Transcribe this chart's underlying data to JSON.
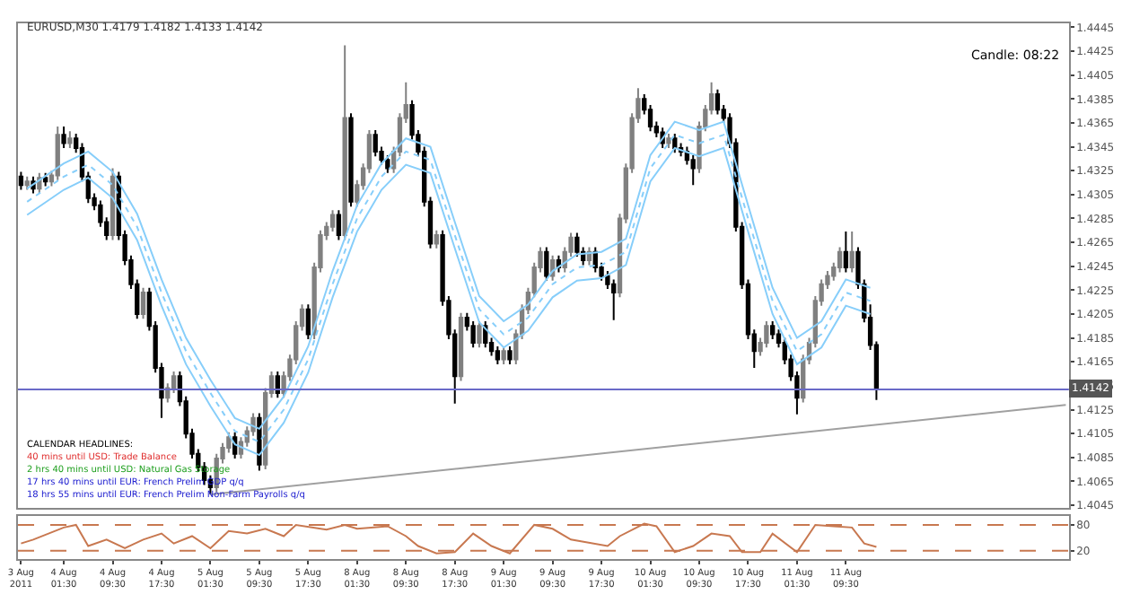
{
  "chart_data": [
    {
      "type": "candlestick",
      "title": "EURUSD,M30 1.4179 1.4182 1.4133 1.4142",
      "ohlc": [
        [
          1.432,
          1.4324,
          1.4309,
          1.4313
        ],
        [
          1.4313,
          1.432,
          1.4309,
          1.4316
        ],
        [
          1.4316,
          1.432,
          1.4306,
          1.431
        ],
        [
          1.431,
          1.4323,
          1.4306,
          1.4319
        ],
        [
          1.4319,
          1.4323,
          1.4312,
          1.4316
        ],
        [
          1.4316,
          1.4325,
          1.4312,
          1.4321
        ],
        [
          1.4321,
          1.4362,
          1.4317,
          1.4355
        ],
        [
          1.4355,
          1.4362,
          1.4344,
          1.4348
        ],
        [
          1.4348,
          1.4358,
          1.4344,
          1.4352
        ],
        [
          1.4352,
          1.4356,
          1.434,
          1.4344
        ],
        [
          1.4344,
          1.4348,
          1.4316,
          1.432
        ],
        [
          1.432,
          1.4324,
          1.4298,
          1.4302
        ],
        [
          1.4302,
          1.4306,
          1.4292,
          1.4296
        ],
        [
          1.4296,
          1.43,
          1.4278,
          1.4282
        ],
        [
          1.4282,
          1.4286,
          1.4267,
          1.4271
        ],
        [
          1.4271,
          1.4327,
          1.4267,
          1.432
        ],
        [
          1.432,
          1.4324,
          1.4267,
          1.4271
        ],
        [
          1.4271,
          1.4275,
          1.4246,
          1.425
        ],
        [
          1.425,
          1.4254,
          1.4226,
          1.423
        ],
        [
          1.423,
          1.4234,
          1.4201,
          1.4205
        ],
        [
          1.4205,
          1.4227,
          1.4201,
          1.4223
        ],
        [
          1.4223,
          1.4227,
          1.4191,
          1.4195
        ],
        [
          1.4195,
          1.4199,
          1.4156,
          1.416
        ],
        [
          1.416,
          1.4164,
          1.4118,
          1.4135
        ],
        [
          1.4135,
          1.4147,
          1.4131,
          1.4143
        ],
        [
          1.4143,
          1.4157,
          1.4139,
          1.4153
        ],
        [
          1.4153,
          1.4157,
          1.4128,
          1.4132
        ],
        [
          1.4132,
          1.4136,
          1.4101,
          1.4105
        ],
        [
          1.4105,
          1.4109,
          1.4084,
          1.4088
        ],
        [
          1.4088,
          1.4092,
          1.4073,
          1.4077
        ],
        [
          1.4077,
          1.4081,
          1.4062,
          1.4066
        ],
        [
          1.4066,
          1.407,
          1.4054,
          1.406
        ],
        [
          1.406,
          1.4088,
          1.4056,
          1.4084
        ],
        [
          1.4084,
          1.4097,
          1.408,
          1.4093
        ],
        [
          1.4093,
          1.4106,
          1.4089,
          1.4102
        ],
        [
          1.4102,
          1.4106,
          1.4084,
          1.4088
        ],
        [
          1.4088,
          1.4102,
          1.4084,
          1.4098
        ],
        [
          1.4098,
          1.4111,
          1.4094,
          1.4107
        ],
        [
          1.4107,
          1.4122,
          1.4103,
          1.4118
        ],
        [
          1.4118,
          1.4122,
          1.4074,
          1.4079
        ],
        [
          1.4079,
          1.4143,
          1.4075,
          1.4139
        ],
        [
          1.4139,
          1.4157,
          1.4135,
          1.4153
        ],
        [
          1.4153,
          1.4157,
          1.4135,
          1.4139
        ],
        [
          1.4139,
          1.4157,
          1.4135,
          1.4153
        ],
        [
          1.4153,
          1.4171,
          1.4149,
          1.4167
        ],
        [
          1.4167,
          1.4199,
          1.4163,
          1.4195
        ],
        [
          1.4195,
          1.4213,
          1.4191,
          1.4209
        ],
        [
          1.4209,
          1.4213,
          1.4184,
          1.4188
        ],
        [
          1.4188,
          1.4248,
          1.4184,
          1.4244
        ],
        [
          1.4244,
          1.4275,
          1.424,
          1.4271
        ],
        [
          1.4271,
          1.4282,
          1.4267,
          1.4278
        ],
        [
          1.4278,
          1.4292,
          1.4274,
          1.4288
        ],
        [
          1.4288,
          1.4292,
          1.4267,
          1.4271
        ],
        [
          1.4271,
          1.443,
          1.4267,
          1.4369
        ],
        [
          1.4369,
          1.4373,
          1.4295,
          1.4299
        ],
        [
          1.4299,
          1.4317,
          1.4295,
          1.4313
        ],
        [
          1.4313,
          1.4331,
          1.4309,
          1.4327
        ],
        [
          1.4327,
          1.4359,
          1.4323,
          1.4355
        ],
        [
          1.4355,
          1.4359,
          1.4337,
          1.4341
        ],
        [
          1.4341,
          1.4345,
          1.433,
          1.4334
        ],
        [
          1.4334,
          1.4338,
          1.4323,
          1.4327
        ],
        [
          1.4327,
          1.4345,
          1.4323,
          1.4341
        ],
        [
          1.4341,
          1.4373,
          1.4337,
          1.4369
        ],
        [
          1.4369,
          1.4399,
          1.4365,
          1.438
        ],
        [
          1.438,
          1.4384,
          1.4351,
          1.4355
        ],
        [
          1.4355,
          1.4359,
          1.4337,
          1.4341
        ],
        [
          1.4341,
          1.4345,
          1.4295,
          1.4299
        ],
        [
          1.4299,
          1.4303,
          1.426,
          1.4264
        ],
        [
          1.4264,
          1.4275,
          1.426,
          1.4271
        ],
        [
          1.4271,
          1.4275,
          1.4212,
          1.4216
        ],
        [
          1.4216,
          1.422,
          1.4184,
          1.4188
        ],
        [
          1.4188,
          1.4192,
          1.413,
          1.4153
        ],
        [
          1.4153,
          1.4206,
          1.4149,
          1.4202
        ],
        [
          1.4202,
          1.4206,
          1.4191,
          1.4195
        ],
        [
          1.4195,
          1.4199,
          1.4177,
          1.4181
        ],
        [
          1.4181,
          1.4199,
          1.4177,
          1.4195
        ],
        [
          1.4195,
          1.4199,
          1.4177,
          1.4181
        ],
        [
          1.4181,
          1.4185,
          1.417,
          1.4174
        ],
        [
          1.4174,
          1.4178,
          1.4163,
          1.4167
        ],
        [
          1.4167,
          1.4178,
          1.4163,
          1.4174
        ],
        [
          1.4174,
          1.4178,
          1.4163,
          1.4167
        ],
        [
          1.4167,
          1.4192,
          1.4163,
          1.4188
        ],
        [
          1.4188,
          1.4213,
          1.4184,
          1.4209
        ],
        [
          1.4209,
          1.4227,
          1.4205,
          1.4223
        ],
        [
          1.4223,
          1.4248,
          1.4219,
          1.4244
        ],
        [
          1.4244,
          1.4261,
          1.424,
          1.4257
        ],
        [
          1.4257,
          1.4261,
          1.4233,
          1.4237
        ],
        [
          1.4237,
          1.4254,
          1.4233,
          1.425
        ],
        [
          1.425,
          1.4254,
          1.424,
          1.4244
        ],
        [
          1.4244,
          1.4261,
          1.424,
          1.4257
        ],
        [
          1.4257,
          1.4273,
          1.4253,
          1.4269
        ],
        [
          1.4269,
          1.4273,
          1.4253,
          1.4257
        ],
        [
          1.4257,
          1.4261,
          1.4246,
          1.425
        ],
        [
          1.425,
          1.4261,
          1.4246,
          1.4257
        ],
        [
          1.4257,
          1.4261,
          1.424,
          1.4244
        ],
        [
          1.4244,
          1.4248,
          1.4233,
          1.4237
        ],
        [
          1.4237,
          1.4241,
          1.4226,
          1.423
        ],
        [
          1.423,
          1.4234,
          1.42,
          1.4223
        ],
        [
          1.4223,
          1.4289,
          1.4219,
          1.4285
        ],
        [
          1.4285,
          1.4331,
          1.4281,
          1.4327
        ],
        [
          1.4327,
          1.4373,
          1.4323,
          1.4369
        ],
        [
          1.4369,
          1.4394,
          1.4365,
          1.4385
        ],
        [
          1.4385,
          1.4389,
          1.4372,
          1.4376
        ],
        [
          1.4376,
          1.438,
          1.4358,
          1.4362
        ],
        [
          1.4362,
          1.4366,
          1.4353,
          1.4357
        ],
        [
          1.4357,
          1.4361,
          1.4344,
          1.4348
        ],
        [
          1.4348,
          1.4356,
          1.4344,
          1.4352
        ],
        [
          1.4352,
          1.4356,
          1.434,
          1.4344
        ],
        [
          1.4344,
          1.4348,
          1.4337,
          1.4341
        ],
        [
          1.4341,
          1.4345,
          1.433,
          1.4334
        ],
        [
          1.4334,
          1.4338,
          1.4313,
          1.4327
        ],
        [
          1.4327,
          1.4366,
          1.4323,
          1.4362
        ],
        [
          1.4362,
          1.438,
          1.4358,
          1.4376
        ],
        [
          1.4376,
          1.4399,
          1.4372,
          1.4389
        ],
        [
          1.4389,
          1.4393,
          1.4372,
          1.4376
        ],
        [
          1.4376,
          1.438,
          1.4365,
          1.4369
        ],
        [
          1.4369,
          1.4373,
          1.4344,
          1.4348
        ],
        [
          1.4348,
          1.4352,
          1.4274,
          1.4278
        ],
        [
          1.4278,
          1.4282,
          1.4226,
          1.423
        ],
        [
          1.423,
          1.4234,
          1.4184,
          1.4188
        ],
        [
          1.4188,
          1.4192,
          1.416,
          1.4174
        ],
        [
          1.4174,
          1.4185,
          1.417,
          1.4181
        ],
        [
          1.4181,
          1.4199,
          1.4177,
          1.4195
        ],
        [
          1.4195,
          1.4199,
          1.4184,
          1.4188
        ],
        [
          1.4188,
          1.4192,
          1.4177,
          1.4181
        ],
        [
          1.4181,
          1.4185,
          1.4163,
          1.4167
        ],
        [
          1.4167,
          1.4171,
          1.4149,
          1.4153
        ],
        [
          1.4153,
          1.4157,
          1.4121,
          1.4135
        ],
        [
          1.4135,
          1.4171,
          1.4131,
          1.4167
        ],
        [
          1.4167,
          1.4185,
          1.4163,
          1.4181
        ],
        [
          1.4181,
          1.422,
          1.4177,
          1.4216
        ],
        [
          1.4216,
          1.4234,
          1.4212,
          1.423
        ],
        [
          1.423,
          1.4241,
          1.4226,
          1.4237
        ],
        [
          1.4237,
          1.4248,
          1.4233,
          1.4244
        ],
        [
          1.4244,
          1.4261,
          1.424,
          1.4257
        ],
        [
          1.4257,
          1.4274,
          1.424,
          1.4244
        ],
        [
          1.4244,
          1.4274,
          1.424,
          1.4257
        ],
        [
          1.4257,
          1.4261,
          1.4226,
          1.423
        ],
        [
          1.423,
          1.4234,
          1.4198,
          1.4202
        ],
        [
          1.4202,
          1.4213,
          1.4175,
          1.4179
        ],
        [
          1.4179,
          1.4182,
          1.4133,
          1.4142
        ],
        null,
        null,
        null,
        null,
        null,
        null,
        null,
        null,
        null,
        null,
        null,
        null,
        null,
        null,
        null,
        null,
        null,
        null,
        null,
        null,
        null,
        null,
        null,
        null,
        null,
        null,
        null,
        null,
        null,
        null,
        null
      ],
      "colors": [
        "#000000",
        "#808080",
        "#000000",
        "#808080",
        "#000000",
        "#808080",
        "#808080",
        "#000000",
        "#808080",
        "#000000",
        "#000000",
        "#000000",
        "#000000",
        "#000000",
        "#000000",
        "#808080",
        "#000000",
        "#000000",
        "#000000",
        "#000000",
        "#808080",
        "#000000",
        "#000000",
        "#000000",
        "#808080",
        "#808080",
        "#000000",
        "#000000",
        "#000000",
        "#000000",
        "#000000",
        "#000000",
        "#808080",
        "#808080",
        "#808080",
        "#000000",
        "#808080",
        "#808080",
        "#808080",
        "#000000",
        "#808080",
        "#808080",
        "#000000",
        "#808080",
        "#808080",
        "#808080",
        "#808080",
        "#000000",
        "#808080",
        "#808080",
        "#808080",
        "#808080",
        "#000000",
        "#808080",
        "#000000",
        "#808080",
        "#808080",
        "#808080",
        "#000000",
        "#000000",
        "#000000",
        "#808080",
        "#808080",
        "#808080",
        "#000000",
        "#000000",
        "#000000",
        "#000000",
        "#808080",
        "#000000",
        "#000000",
        "#000000",
        "#808080",
        "#000000",
        "#000000",
        "#808080",
        "#000000",
        "#000000",
        "#000000",
        "#808080",
        "#000000",
        "#808080",
        "#808080",
        "#808080",
        "#808080",
        "#808080",
        "#000000",
        "#808080",
        "#000000",
        "#808080",
        "#808080",
        "#000000",
        "#000000",
        "#808080",
        "#000000",
        "#000000",
        "#000000",
        "#000000",
        "#808080",
        "#808080",
        "#808080",
        "#808080",
        "#000000",
        "#000000",
        "#000000",
        "#000000",
        "#808080",
        "#000000",
        "#000000",
        "#000000",
        "#000000",
        "#808080",
        "#808080",
        "#808080",
        "#000000",
        "#000000",
        "#000000",
        "#000000",
        "#000000",
        "#000000",
        "#000000",
        "#808080",
        "#808080",
        "#000000",
        "#000000",
        "#000000",
        "#000000",
        "#000000",
        "#808080",
        "#808080",
        "#808080",
        "#808080",
        "#808080",
        "#808080",
        "#808080",
        "#000000",
        "#808080",
        "#000000",
        "#000000",
        "#000000",
        "#000000",
        null,
        null,
        null,
        null,
        null,
        null,
        null,
        null,
        null,
        null,
        null,
        null,
        null,
        null,
        null,
        null,
        null,
        null,
        null,
        null,
        null,
        null,
        null,
        null,
        null,
        null,
        null,
        null,
        null,
        null,
        null
      ],
      "series": [
        {
          "type": "line",
          "color": "#87cefa",
          "line_style": "solid",
          "values": [
            null,
            1.431,
            null,
            null,
            null,
            null,
            null,
            1.4331,
            null,
            null,
            null,
            1.4341,
            null,
            null,
            null,
            1.4324,
            null,
            null,
            null,
            1.4289,
            null,
            null,
            null,
            1.4234,
            null,
            null,
            null,
            1.4185,
            null,
            null,
            null,
            1.415,
            null,
            null,
            null,
            1.4118,
            null,
            null,
            null,
            1.4109,
            null,
            null,
            null,
            1.4136,
            null,
            null,
            null,
            1.4178,
            null,
            null,
            null,
            1.4241,
            null,
            null,
            null,
            1.4296,
            null,
            null,
            null,
            1.4331,
            null,
            null,
            null,
            1.4352,
            null,
            null,
            null,
            1.4345,
            null,
            null,
            null,
            1.4282,
            null,
            null,
            null,
            1.422,
            null,
            null,
            null,
            1.4199,
            null,
            null,
            null,
            1.4213,
            null,
            null,
            null,
            1.4241,
            null,
            null,
            null,
            1.4255,
            null,
            null,
            null,
            1.4257,
            null,
            null,
            null,
            1.4268,
            null,
            null,
            null,
            1.4338,
            null,
            null,
            null,
            1.4366,
            null,
            null,
            null,
            1.4359,
            null,
            null,
            null,
            1.4366,
            null,
            null,
            null,
            1.4296,
            null,
            null,
            null,
            1.4227,
            null,
            null,
            null,
            1.4185,
            null,
            null,
            null,
            1.4199,
            null,
            null,
            null,
            1.4234,
            null,
            null,
            null,
            1.4227,
            null,
            null,
            null,
            null,
            null,
            null,
            null,
            null,
            null,
            null,
            null,
            null,
            null,
            null,
            null,
            null,
            null,
            null,
            null,
            null,
            null,
            null,
            null,
            null,
            null,
            null,
            null,
            null,
            null,
            null,
            null,
            null
          ]
        },
        {
          "type": "line",
          "color": "#87cefa",
          "line_style": "dotted",
          "values": [
            null,
            1.4299,
            null,
            null,
            null,
            null,
            null,
            1.432,
            null,
            null,
            null,
            1.433,
            null,
            null,
            null,
            1.4313,
            null,
            null,
            null,
            1.4278,
            null,
            null,
            null,
            1.4223,
            null,
            null,
            null,
            1.4174,
            null,
            null,
            null,
            1.4139,
            null,
            null,
            null,
            1.4107,
            null,
            null,
            null,
            1.4098,
            null,
            null,
            null,
            1.4125,
            null,
            null,
            null,
            1.4167,
            null,
            null,
            null,
            1.423,
            null,
            null,
            null,
            1.4285,
            null,
            null,
            null,
            1.432,
            null,
            null,
            null,
            1.4341,
            null,
            null,
            null,
            1.4334,
            null,
            null,
            null,
            1.4271,
            null,
            null,
            null,
            1.4209,
            null,
            null,
            null,
            1.4188,
            null,
            null,
            null,
            1.4202,
            null,
            null,
            null,
            1.423,
            null,
            null,
            null,
            1.4244,
            null,
            null,
            null,
            1.4246,
            null,
            null,
            null,
            1.4257,
            null,
            null,
            null,
            1.4327,
            null,
            null,
            null,
            1.4355,
            null,
            null,
            null,
            1.4348,
            null,
            null,
            null,
            1.4355,
            null,
            null,
            null,
            1.4285,
            null,
            null,
            null,
            1.4216,
            null,
            null,
            null,
            1.4174,
            null,
            null,
            null,
            1.4188,
            null,
            null,
            null,
            1.4223,
            null,
            null,
            null,
            1.4216,
            null,
            null,
            null,
            null,
            null,
            null,
            null,
            null,
            null,
            null,
            null,
            null,
            null,
            null,
            null,
            null,
            null,
            null,
            null,
            null,
            null,
            null,
            null,
            null,
            null,
            null,
            null,
            null,
            null,
            null,
            null,
            null
          ]
        },
        {
          "type": "line",
          "color": "#87cefa",
          "line_style": "solid",
          "values": [
            null,
            1.4288,
            null,
            null,
            null,
            null,
            null,
            1.4309,
            null,
            null,
            null,
            1.4319,
            null,
            null,
            null,
            1.4302,
            null,
            null,
            null,
            1.4267,
            null,
            null,
            null,
            1.4212,
            null,
            null,
            null,
            1.4163,
            null,
            null,
            null,
            1.4128,
            null,
            null,
            null,
            1.4096,
            null,
            null,
            null,
            1.4087,
            null,
            null,
            null,
            1.4114,
            null,
            null,
            null,
            1.4156,
            null,
            null,
            null,
            1.4219,
            null,
            null,
            null,
            1.4274,
            null,
            null,
            null,
            1.4309,
            null,
            null,
            null,
            1.433,
            null,
            null,
            null,
            1.4323,
            null,
            null,
            null,
            1.426,
            null,
            null,
            null,
            1.4198,
            null,
            null,
            null,
            1.4177,
            null,
            null,
            null,
            1.4191,
            null,
            null,
            null,
            1.4219,
            null,
            null,
            null,
            1.4233,
            null,
            null,
            null,
            1.4235,
            null,
            null,
            null,
            1.4246,
            null,
            null,
            null,
            1.4316,
            null,
            null,
            null,
            1.4344,
            null,
            null,
            null,
            1.4337,
            null,
            null,
            null,
            1.4344,
            null,
            null,
            null,
            1.4274,
            null,
            null,
            null,
            1.4205,
            null,
            null,
            null,
            1.4163,
            null,
            null,
            null,
            1.4177,
            null,
            null,
            null,
            1.4212,
            null,
            null,
            null,
            1.4205,
            null,
            null,
            null,
            null,
            null,
            null,
            null,
            null,
            null,
            null,
            null,
            null,
            null,
            null,
            null,
            null,
            null,
            null,
            null,
            null,
            null,
            null,
            null,
            null,
            null,
            null,
            null,
            null,
            null,
            null,
            null,
            null
          ]
        },
        {
          "type": "line",
          "color": "#a0a0a0",
          "line_style": "solid",
          "values": [
            null,
            null,
            null,
            null,
            null,
            null,
            null,
            null,
            null,
            null,
            null,
            null,
            null,
            null,
            null,
            null,
            null,
            null,
            null,
            null,
            null,
            null,
            null,
            null,
            null,
            null,
            null,
            null,
            null,
            null,
            null,
            1.4054,
            null,
            null,
            null,
            null,
            null,
            null,
            null,
            null,
            null,
            null,
            null,
            null,
            null,
            null,
            null,
            null,
            null,
            null,
            null,
            null,
            null,
            null,
            null,
            null,
            null,
            null,
            null,
            null,
            null,
            null,
            null,
            null,
            null,
            null,
            null,
            null,
            null,
            null,
            null,
            null,
            null,
            null,
            null,
            null,
            null,
            null,
            null,
            null,
            null,
            null,
            null,
            null,
            null,
            null,
            null,
            null,
            null,
            null,
            null,
            null,
            null,
            null,
            null,
            null,
            null,
            null,
            null,
            null,
            null,
            null,
            null,
            null,
            null,
            null,
            null,
            null,
            null,
            null,
            null,
            null,
            null,
            null,
            null,
            null,
            null,
            null,
            null,
            null,
            null,
            null,
            null,
            null,
            null,
            null,
            null,
            null,
            null,
            null,
            null,
            null,
            null,
            null,
            null,
            null,
            null,
            null,
            null,
            null,
            null,
            null,
            null,
            null,
            null,
            null,
            null,
            null,
            null,
            null,
            null,
            null,
            null,
            null,
            null,
            null,
            null,
            null,
            null,
            null,
            null,
            null,
            null,
            null,
            null,
            null,
            null,
            null,
            null,
            null,
            null,
            1.4129
          ]
        }
      ],
      "ref_lines": [
        {
          "axis": "y",
          "value": 1.4142,
          "label": "1.4142",
          "color": "#6a6ac8",
          "line_style": "solid"
        }
      ],
      "annotations": [
        "Candle: 08:22",
        "CALENDAR HEADLINES:",
        "40 mins until USD: Trade Balance",
        "2 hrs 40 mins until USD: Natural Gas Storage",
        "17 hrs 40 mins until EUR: French Prelim GDP q/q",
        "18 hrs 55 mins until EUR: French Prelim Non-Farm Payrolls q/q"
      ],
      "ylim": [
        1.4043,
        1.4448
      ],
      "yticks": [
        1.4445,
        1.4425,
        1.4405,
        1.4385,
        1.4365,
        1.4345,
        1.4325,
        1.4305,
        1.4285,
        1.4265,
        1.4245,
        1.4225,
        1.4205,
        1.4185,
        1.4165,
        1.4145,
        1.4125,
        1.4105,
        1.4085,
        1.4065,
        1.4045
      ],
      "tick_labels": "y"
    },
    {
      "type": "line",
      "color": "#c87850",
      "categories": [
        "3 Aug 2011",
        null,
        null,
        null,
        null,
        null,
        null,
        "4 Aug 01:30",
        null,
        null,
        null,
        null,
        null,
        null,
        null,
        "4 Aug 09:30",
        null,
        null,
        null,
        null,
        null,
        null,
        null,
        "4 Aug 17:30",
        null,
        null,
        null,
        null,
        null,
        null,
        null,
        "5 Aug 01:30",
        null,
        null,
        null,
        null,
        null,
        null,
        null,
        "5 Aug 09:30",
        null,
        null,
        null,
        null,
        null,
        null,
        null,
        "5 Aug 17:30",
        null,
        null,
        null,
        null,
        null,
        null,
        null,
        "8 Aug 01:30",
        null,
        null,
        null,
        null,
        null,
        null,
        null,
        "8 Aug 09:30",
        null,
        null,
        null,
        null,
        null,
        null,
        null,
        "8 Aug 17:30",
        null,
        null,
        null,
        null,
        null,
        null,
        null,
        "9 Aug 01:30",
        null,
        null,
        null,
        null,
        null,
        null,
        null,
        "9 Aug 09:30",
        null,
        null,
        null,
        null,
        null,
        null,
        null,
        "9 Aug 17:30",
        null,
        null,
        null,
        null,
        null,
        null,
        null,
        "10 Aug 01:30",
        null,
        null,
        null,
        null,
        null,
        null,
        null,
        "10 Aug 09:30",
        null,
        null,
        null,
        null,
        null,
        null,
        null,
        "10 Aug 17:30",
        null,
        null,
        null,
        null,
        null,
        null,
        null,
        "11 Aug 01:30",
        null,
        null,
        null,
        null,
        null,
        null,
        null,
        "11 Aug 09:30",
        null,
        null,
        null,
        null,
        null,
        null,
        null,
        null,
        null,
        null,
        null,
        null,
        null,
        null,
        null,
        null,
        null,
        null,
        null,
        null,
        null,
        null,
        null,
        null,
        null,
        null,
        null,
        null,
        null,
        null,
        null,
        null,
        null,
        null,
        null,
        null
      ],
      "values": [
        37,
        null,
        46,
        null,
        null,
        null,
        null,
        74,
        null,
        80,
        null,
        31,
        null,
        null,
        46,
        null,
        null,
        26,
        null,
        null,
        46,
        null,
        null,
        60,
        null,
        37,
        null,
        null,
        54,
        null,
        null,
        26,
        null,
        null,
        66,
        null,
        null,
        60,
        null,
        null,
        71,
        null,
        null,
        54,
        null,
        80,
        null,
        null,
        null,
        null,
        69,
        null,
        null,
        80,
        null,
        71,
        null,
        null,
        null,
        null,
        77,
        null,
        null,
        54,
        null,
        31,
        null,
        null,
        14,
        null,
        null,
        17,
        null,
        null,
        60,
        null,
        null,
        31,
        null,
        null,
        14,
        null,
        null,
        null,
        80,
        null,
        null,
        71,
        null,
        null,
        46,
        null,
        null,
        null,
        null,
        null,
        31,
        null,
        54,
        null,
        null,
        null,
        83,
        null,
        77,
        null,
        null,
        17,
        null,
        null,
        31,
        null,
        null,
        60,
        null,
        null,
        54,
        null,
        17,
        null,
        null,
        17,
        null,
        60,
        null,
        null,
        null,
        17,
        null,
        null,
        80,
        null,
        null,
        77,
        null,
        null,
        74,
        null,
        37,
        null,
        29,
        null,
        null,
        null,
        null,
        null,
        null,
        null,
        null,
        null,
        null,
        null,
        null,
        null,
        null,
        null,
        null,
        null,
        null,
        null,
        null,
        null,
        null,
        null,
        null,
        null,
        null,
        null,
        null,
        null,
        null,
        null
      ],
      "ref_lines": [
        {
          "axis": "y",
          "value": 80,
          "color": "#c87850",
          "line_style": "dashed"
        },
        {
          "axis": "y",
          "value": 20,
          "color": "#c87850",
          "line_style": "dashed"
        }
      ],
      "ylim": [
        0,
        100
      ],
      "yticks": [
        80,
        20
      ]
    }
  ]
}
